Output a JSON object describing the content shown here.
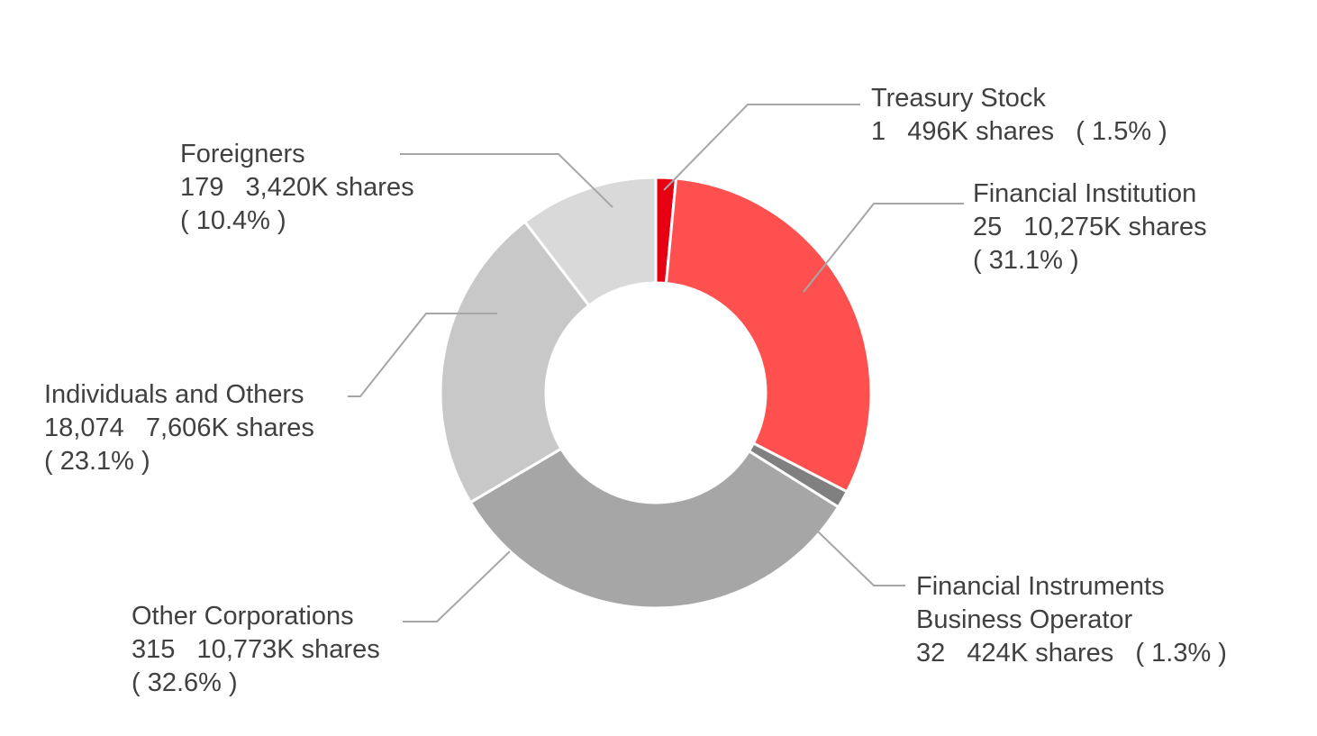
{
  "chart_data": {
    "type": "pie",
    "donut": true,
    "legend": "none",
    "slices": [
      {
        "name": "Treasury Stock",
        "holders": "1",
        "shares": "496K shares",
        "percent_label": "( 1.5% )",
        "value": 1.5,
        "color": "#e60012",
        "label_lines": [
          "Treasury Stock",
          "1   496K shares   ( 1.5% )"
        ]
      },
      {
        "name": "Financial Institution",
        "holders": "25",
        "shares": "10,275K shares",
        "percent_label": "( 31.1% )",
        "value": 31.1,
        "color": "#ff5050",
        "label_lines": [
          "Financial Institution",
          "25   10,275K shares",
          "( 31.1% )"
        ]
      },
      {
        "name": "Financial Instruments Business Operator",
        "holders": "32",
        "shares": "424K shares",
        "percent_label": "( 1.3% )",
        "value": 1.3,
        "color": "#808080",
        "label_lines": [
          "Financial Instruments",
          "Business Operator",
          "32   424K shares   ( 1.3% )"
        ]
      },
      {
        "name": "Other Corporations",
        "holders": "315",
        "shares": "10,773K shares",
        "percent_label": "( 32.6% )",
        "value": 32.6,
        "color": "#a6a6a6",
        "label_lines": [
          "Other Corporations",
          "315   10,773K shares",
          "( 32.6% )"
        ]
      },
      {
        "name": "Individuals and Others",
        "holders": "18,074",
        "shares": "7,606K shares",
        "percent_label": "( 23.1% )",
        "value": 23.1,
        "color": "#c8c8c8",
        "label_lines": [
          "Individuals and Others",
          "18,074   7,606K shares",
          "( 23.1% )"
        ]
      },
      {
        "name": "Foreigners",
        "holders": "179",
        "shares": "3,420K shares",
        "percent_label": "( 10.4% )",
        "value": 10.4,
        "color": "#d9d9d9",
        "label_lines": [
          "Foreigners",
          "179   3,420K shares",
          "( 10.4% )"
        ]
      }
    ]
  }
}
